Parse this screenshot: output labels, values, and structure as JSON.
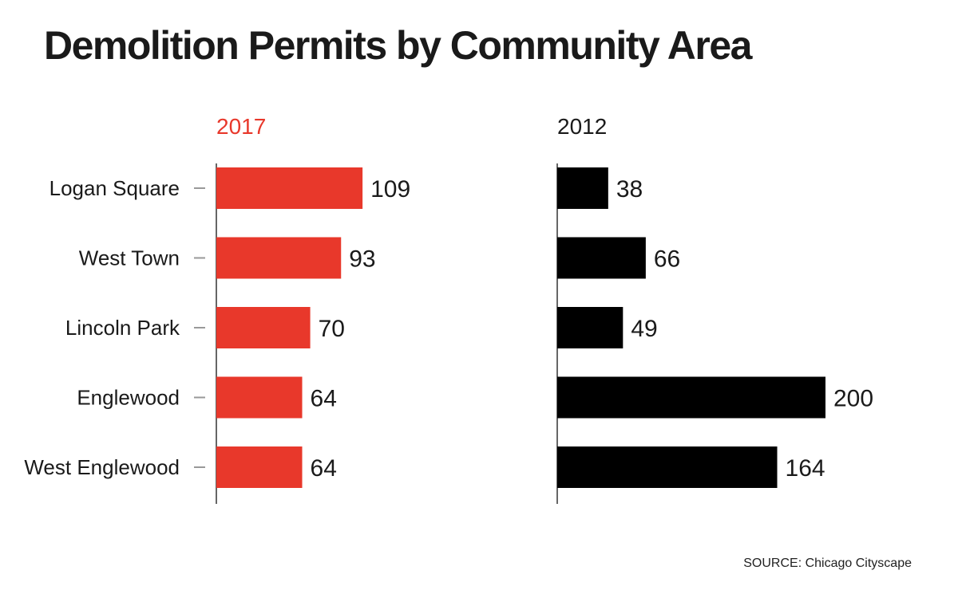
{
  "title": "Demolition Permits by Community Area",
  "source": "SOURCE: Chicago Cityscape",
  "colors": {
    "red": "#e8382b",
    "black": "#000000",
    "text": "#1a1a1a",
    "axis": "#333333",
    "tick": "#999999"
  },
  "chart_data": [
    {
      "type": "bar",
      "orientation": "horizontal",
      "name": "2017",
      "color": "#e8382b",
      "categories": [
        "Logan Square",
        "West Town",
        "Lincoln Park",
        "Englewood",
        "West Englewood"
      ],
      "values": [
        109,
        93,
        70,
        64,
        64
      ],
      "xlim": [
        0,
        200
      ],
      "grid": false,
      "data_labels": true
    },
    {
      "type": "bar",
      "orientation": "horizontal",
      "name": "2012",
      "color": "#000000",
      "categories": [
        "Logan Square",
        "West Town",
        "Lincoln Park",
        "Englewood",
        "West Englewood"
      ],
      "values": [
        38,
        66,
        49,
        200,
        164
      ],
      "xlim": [
        0,
        200
      ],
      "grid": false,
      "data_labels": true
    }
  ]
}
